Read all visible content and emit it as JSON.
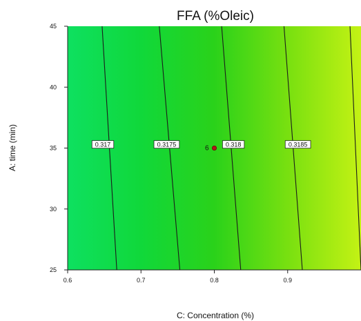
{
  "chart_data": {
    "type": "contour",
    "title": "FFA (%Oleic)",
    "xlabel": "C: Concentration (%)",
    "ylabel": "A: time (min)",
    "xlim": [
      0.6,
      1.0
    ],
    "ylim": [
      25,
      45
    ],
    "x_ticks": [
      "0.6",
      "0.7",
      "0.8",
      "0.9"
    ],
    "y_ticks": [
      "25",
      "30",
      "35",
      "40",
      "45"
    ],
    "contours": [
      {
        "level": "0.317",
        "x_at_y25": 0.667,
        "x_at_y45": 0.647,
        "label_at": [
          0.648,
          35.3
        ]
      },
      {
        "level": "0.3175",
        "x_at_y25": 0.753,
        "x_at_y45": 0.725,
        "label_at": [
          0.735,
          35.3
        ]
      },
      {
        "level": "0.318",
        "x_at_y25": 0.836,
        "x_at_y45": 0.81,
        "label_at": [
          0.826,
          35.3
        ]
      },
      {
        "level": "0.3185",
        "x_at_y25": 0.92,
        "x_at_y45": 0.895,
        "label_at": [
          0.914,
          35.3
        ]
      },
      {
        "level": "",
        "x_at_y25": 1.0,
        "x_at_y45": 0.985,
        "label_at": null
      }
    ],
    "design_points": [
      {
        "x": 0.8,
        "y": 35,
        "label": "6",
        "color": "#b01818"
      }
    ],
    "colormap": [
      "#0ee060",
      "#10d83a",
      "#2ad21a",
      "#78e010",
      "#c4f214"
    ]
  }
}
